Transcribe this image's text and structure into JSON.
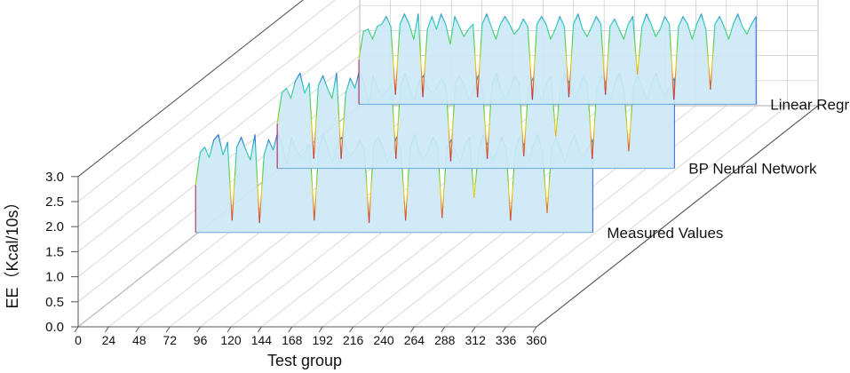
{
  "chart_data": {
    "type": "area",
    "view": "3d-waterfall",
    "xlabel": "Test group",
    "ylabel": "EE（Kcal/10s）",
    "xlim": [
      0,
      360
    ],
    "ylim": [
      0.0,
      3.0
    ],
    "xticks": [
      "0",
      "24",
      "48",
      "72",
      "96",
      "120",
      "144",
      "168",
      "192",
      "216",
      "240",
      "264",
      "288",
      "312",
      "336",
      "360"
    ],
    "yticks": [
      "0.0",
      "0.5",
      "1.0",
      "1.5",
      "2.0",
      "2.5",
      "3.0"
    ],
    "grid": true,
    "colormap": [
      "#b0104a",
      "#e0602a",
      "#e8d020",
      "#60d040",
      "#30d0c0",
      "#3060d8"
    ],
    "area_fill": "#cce8f6",
    "series": [
      {
        "name": "Linear Regression",
        "x_range": [
          48,
          360
        ],
        "values": [
          1.9,
          2.45,
          2.5,
          2.3,
          2.55,
          2.6,
          2.75,
          2.55,
          1.2,
          2.6,
          2.8,
          2.6,
          2.3,
          2.8,
          1.15,
          2.5,
          2.75,
          2.5,
          2.8,
          2.6,
          2.2,
          2.75,
          2.55,
          2.35,
          2.5,
          2.6,
          1.15,
          2.6,
          2.8,
          2.55,
          2.3,
          2.6,
          2.75,
          2.6,
          2.4,
          2.5,
          2.7,
          2.55,
          1.1,
          2.6,
          2.75,
          2.6,
          2.3,
          2.5,
          2.75,
          2.55,
          1.15,
          2.6,
          2.8,
          2.5,
          2.35,
          2.55,
          2.75,
          2.6,
          1.2,
          2.55,
          2.7,
          2.5,
          2.3,
          2.6,
          2.75,
          1.6,
          2.55,
          2.8,
          2.6,
          2.35,
          2.5,
          2.75,
          2.6,
          1.1,
          2.55,
          2.75,
          2.6,
          2.3,
          2.6,
          2.8,
          2.5,
          1.3,
          2.6,
          2.75,
          2.55,
          2.3,
          2.6,
          2.8,
          2.55,
          2.4,
          2.6,
          2.75
        ]
      },
      {
        "name": "BP Neural Network",
        "x_range": [
          48,
          360
        ],
        "values": [
          1.9,
          2.5,
          2.6,
          2.4,
          2.75,
          2.9,
          2.5,
          2.7,
          1.2,
          2.65,
          2.85,
          2.6,
          2.4,
          2.9,
          1.2,
          2.5,
          2.8,
          2.6,
          2.95,
          2.7,
          2.3,
          2.85,
          2.6,
          2.45,
          2.55,
          2.7,
          1.2,
          2.65,
          2.9,
          2.6,
          2.35,
          2.7,
          2.85,
          2.6,
          2.5,
          2.6,
          2.8,
          2.6,
          1.15,
          2.7,
          2.85,
          2.65,
          2.35,
          2.55,
          2.85,
          2.6,
          1.2,
          2.65,
          2.9,
          2.55,
          2.4,
          2.6,
          2.85,
          2.7,
          1.25,
          2.6,
          2.8,
          2.55,
          2.35,
          2.7,
          2.85,
          1.65,
          2.6,
          2.9,
          2.7,
          2.4,
          2.55,
          2.85,
          2.65,
          1.2,
          2.6,
          2.85,
          2.7,
          2.35,
          2.7,
          2.9,
          2.55,
          1.35,
          2.65,
          2.85,
          2.6,
          2.35,
          2.7,
          2.9,
          2.6,
          2.45,
          2.65,
          2.8
        ]
      },
      {
        "name": "Measured Values",
        "x_range": [
          48,
          360
        ],
        "values": [
          1.95,
          2.6,
          2.7,
          2.5,
          2.85,
          2.95,
          2.55,
          2.8,
          1.25,
          2.7,
          2.9,
          2.65,
          2.45,
          2.95,
          1.2,
          2.55,
          2.85,
          2.65,
          3.0,
          2.75,
          2.35,
          2.9,
          2.65,
          2.5,
          2.6,
          2.75,
          1.25,
          2.7,
          2.95,
          2.65,
          2.4,
          2.75,
          2.9,
          2.65,
          2.55,
          2.65,
          2.85,
          2.65,
          1.2,
          2.75,
          2.9,
          2.7,
          2.4,
          2.6,
          2.9,
          2.65,
          1.25,
          2.7,
          2.95,
          2.6,
          2.45,
          2.65,
          2.9,
          2.75,
          1.3,
          2.65,
          2.85,
          2.6,
          2.4,
          2.75,
          2.9,
          1.7,
          2.65,
          2.95,
          2.75,
          2.45,
          2.6,
          2.9,
          2.7,
          1.25,
          2.65,
          2.9,
          2.75,
          2.4,
          2.75,
          2.95,
          2.6,
          1.4,
          2.7,
          2.9,
          2.65,
          2.4,
          2.75,
          2.95,
          2.65,
          2.5,
          2.7,
          2.85
        ]
      }
    ]
  }
}
